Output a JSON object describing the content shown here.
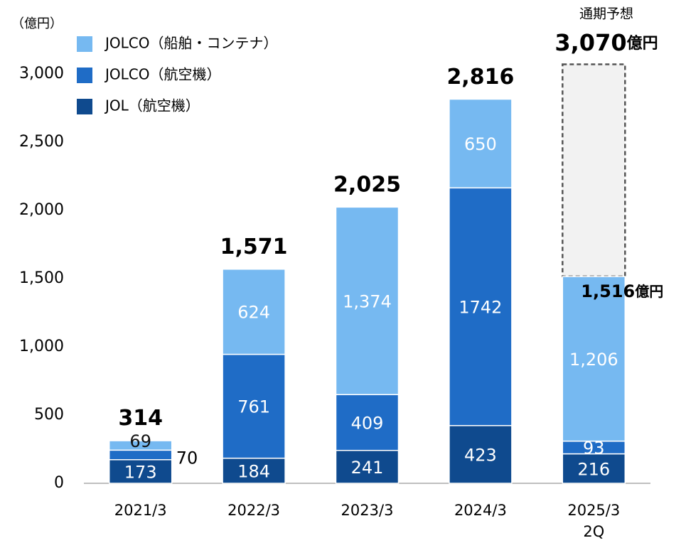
{
  "chart_data": {
    "type": "stacked_bar",
    "y_unit_label": "（億円）",
    "categories": [
      "2021/3",
      "2022/3",
      "2023/3",
      "2024/3",
      "2025/3\n2Q"
    ],
    "series": [
      {
        "name": "JOL（航空機）",
        "color": "#0f4a8e",
        "values": [
          173,
          184,
          241,
          423,
          216
        ]
      },
      {
        "name": "JOLCO（航空機）",
        "color": "#1f6cc6",
        "values": [
          70,
          761,
          409,
          1742,
          93
        ]
      },
      {
        "name": "JOLCO（船舶・コンテナ）",
        "color": "#76b9f1",
        "values": [
          69,
          624,
          1374,
          650,
          1206
        ],
        "value_labels": [
          "69",
          "624",
          "1,374",
          "650",
          "1,206"
        ]
      }
    ],
    "totals": [
      314,
      1571,
      2025,
      2816,
      1516
    ],
    "totals_labels": [
      "314",
      "1,571",
      "2,025",
      "2,816",
      "1,516"
    ],
    "total_unit": "億円",
    "forecast": {
      "label": "通期予想",
      "value": 3070,
      "value_label": "3,070"
    },
    "ylim": [
      0,
      3000
    ],
    "yticks": [
      0,
      500,
      {
        "value": 1000,
        "label": "1,000"
      },
      {
        "value": 1500,
        "label": "1,500"
      },
      {
        "value": 2000,
        "label": "2,000"
      },
      {
        "value": 2500,
        "label": "2,500"
      },
      {
        "value": 3000,
        "label": "3,000"
      }
    ],
    "grid": false
  }
}
